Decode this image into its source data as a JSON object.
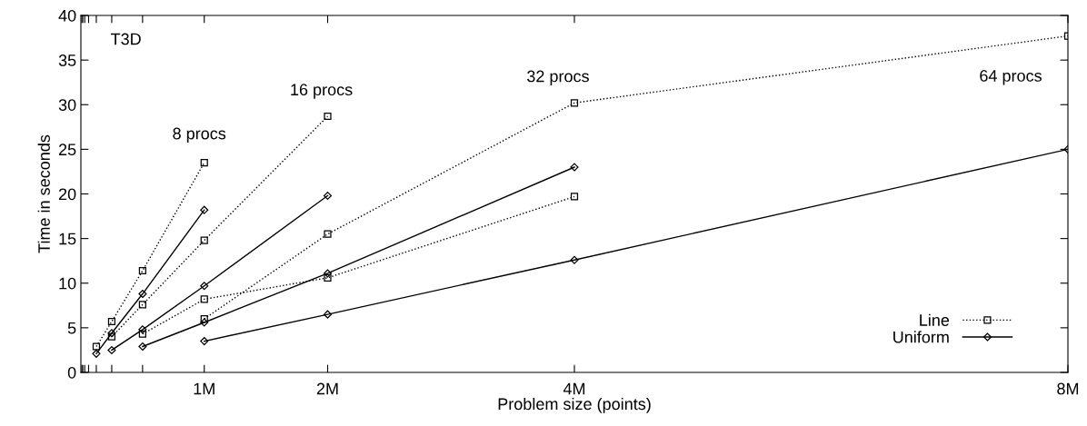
{
  "chart_data": {
    "type": "line",
    "xlabel": "Problem size (points)",
    "ylabel": "Time in seconds",
    "xlim": [
      0,
      8
    ],
    "ylim": [
      0,
      40
    ],
    "yticks": [
      0,
      5,
      10,
      15,
      20,
      25,
      30,
      35,
      40
    ],
    "xticks": [
      {
        "value": 0.0078125,
        "label": null
      },
      {
        "value": 0.015625,
        "label": null
      },
      {
        "value": 0.03125,
        "label": null
      },
      {
        "value": 0.0625,
        "label": null
      },
      {
        "value": 0.125,
        "label": null
      },
      {
        "value": 0.25,
        "label": null
      },
      {
        "value": 0.5,
        "label": null
      },
      {
        "value": 1,
        "label": "1M"
      },
      {
        "value": 2,
        "label": "2M"
      },
      {
        "value": 4,
        "label": "4M"
      },
      {
        "value": 8,
        "label": "8M"
      }
    ],
    "grid": false,
    "legend": "bottom right",
    "series": [
      {
        "name": "Line",
        "color": "#000000",
        "marker": "square",
        "line_style": "dotted",
        "x": [
          0.125,
          0.25,
          0.5,
          1
        ],
        "values": [
          2.9,
          5.7,
          11.4,
          23.5
        ]
      },
      {
        "name": "Uniform",
        "color": "#000000",
        "marker": "diamond",
        "line_style": "solid",
        "x": [
          0.125,
          0.25,
          0.5,
          1
        ],
        "values": [
          2.1,
          4.4,
          8.8,
          18.2
        ]
      },
      {
        "color": "#000000",
        "marker": "square",
        "line_style": "dotted",
        "x": [
          0.25,
          0.5,
          1,
          2
        ],
        "values": [
          4.0,
          7.6,
          14.8,
          28.7
        ]
      },
      {
        "color": "#000000",
        "marker": "diamond",
        "line_style": "solid",
        "x": [
          0.25,
          0.5,
          1,
          2
        ],
        "values": [
          2.5,
          4.8,
          9.7,
          19.8
        ]
      },
      {
        "color": "#000000",
        "marker": "square",
        "line_style": "dotted",
        "x": [
          0.5,
          1,
          2,
          4
        ],
        "values": [
          4.3,
          8.2,
          10.6,
          19.7
        ]
      },
      {
        "color": "#000000",
        "marker": "diamond",
        "line_style": "solid",
        "x": [
          0.5,
          1,
          2,
          4
        ],
        "values": [
          2.9,
          5.6,
          11.1,
          23.0
        ]
      },
      {
        "color": "#000000",
        "marker": "square",
        "line_style": "dotted",
        "x": [
          1,
          2,
          4,
          8
        ],
        "values": [
          6.0,
          15.5,
          30.2,
          37.7
        ]
      },
      {
        "color": "#000000",
        "marker": "diamond",
        "line_style": "solid",
        "x": [
          1,
          2,
          4,
          8
        ],
        "values": [
          3.5,
          6.5,
          12.6,
          25.0
        ]
      }
    ],
    "annotations": [
      "T3D",
      {
        "text": "8 procs",
        "x": 1,
        "y": 23.5
      },
      {
        "text": "16 procs",
        "x": 2,
        "y": 28.7
      },
      {
        "text": "32 procs",
        "x": 4,
        "y": 30.2
      },
      "64 procs"
    ]
  }
}
